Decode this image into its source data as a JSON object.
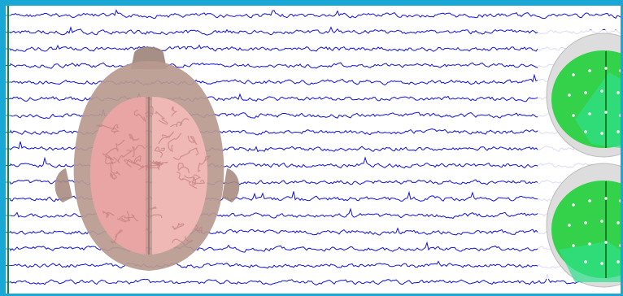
{
  "eeg": {
    "channel_count": 17,
    "trace_color": "#1111dd",
    "frame_color": "#19a7d6",
    "axis_color": "#1a7f4a"
  },
  "head_model": {
    "brain_color": "#e8a0a0",
    "skin_color": "#c8a79a"
  },
  "topographic_maps": {
    "count": 2,
    "map_color": "#33d24a",
    "highlight_color": "#2ee08c"
  }
}
